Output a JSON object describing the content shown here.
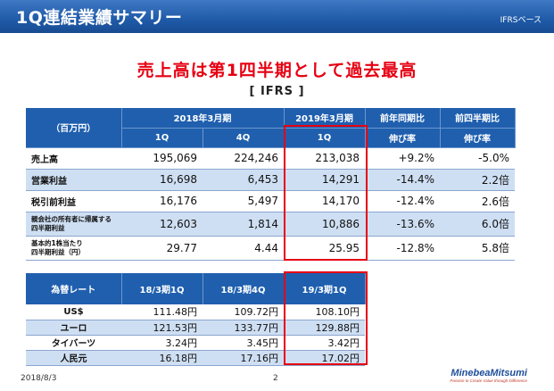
{
  "header": {
    "title": "1Q連結業績サマリー",
    "note": "IFRSベース"
  },
  "headline": "売上高は第1四半期として過去最高",
  "standard": "[ IFRS ]",
  "main_table": {
    "unit_label": "（百万円）",
    "group_2018": "2018年3月期",
    "group_2019": "2019年3月期",
    "yoy_header": "前年同期比",
    "qoq_header": "前四半期比",
    "col_1q": "1Q",
    "col_4q": "4Q",
    "col_1q_2019": "1Q",
    "growth_label_1": "伸び率",
    "growth_label_2": "伸び率",
    "rows": [
      {
        "label": "売上高",
        "v1": "195,069",
        "v2": "224,246",
        "v3": "213,038",
        "yoy": "+9.2%",
        "qoq": "-5.0%"
      },
      {
        "label": "営業利益",
        "v1": "16,698",
        "v2": "6,453",
        "v3": "14,291",
        "yoy": "-14.4%",
        "qoq": "2.2倍"
      },
      {
        "label": "税引前利益",
        "v1": "16,176",
        "v2": "5,497",
        "v3": "14,170",
        "yoy": "-12.4%",
        "qoq": "2.6倍"
      },
      {
        "label_line1": "親会社の所有者に帰属する",
        "label_line2": "四半期利益",
        "v1": "12,603",
        "v2": "1,814",
        "v3": "10,886",
        "yoy": "-13.6%",
        "qoq": "6.0倍"
      },
      {
        "label_line1": "基本的1株当たり",
        "label_line2": "四半期利益（円）",
        "v1": "29.77",
        "v2": "4.44",
        "v3": "25.95",
        "yoy": "-12.8%",
        "qoq": "5.8倍"
      }
    ]
  },
  "fx_table": {
    "header_label": "為替レート",
    "col1": "18/3期1Q",
    "col2": "18/3期4Q",
    "col3": "19/3期1Q",
    "rows": [
      {
        "label": "US$",
        "v1": "111.48円",
        "v2": "109.72円",
        "v3": "108.10円"
      },
      {
        "label": "ユーロ",
        "v1": "121.53円",
        "v2": "133.77円",
        "v3": "129.88円"
      },
      {
        "label": "タイバーツ",
        "v1": "3.24円",
        "v2": "3.45円",
        "v3": "3.42円"
      },
      {
        "label": "人民元",
        "v1": "16.18円",
        "v2": "17.16円",
        "v3": "17.02円"
      }
    ]
  },
  "footer": {
    "date": "2018/8/3",
    "page": "2",
    "logo_name": "MinebeaMitsumi",
    "logo_tagline": "Passion to Create Value through Difference"
  },
  "colors": {
    "brand": "#1f5fae",
    "highlight": "#e60012",
    "row_band": "#cfdff3"
  }
}
